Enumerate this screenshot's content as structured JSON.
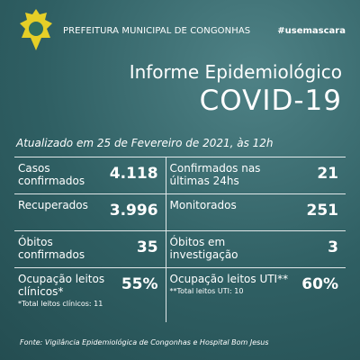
{
  "header": {
    "organization": "PREFEITURA MUNICIPAL DE CONGONHAS",
    "hashtag": "#usemascara",
    "title": "Informe Epidemiológico",
    "subtitle": "COVID-19",
    "updated": "Atualizado em 25 de Fevereiro de 2021, às 12h"
  },
  "stats": [
    [
      {
        "label": "Casos confirmados",
        "value": "4.118"
      },
      {
        "label": "Confirmados nas últimas 24hs",
        "value": "21"
      }
    ],
    [
      {
        "label": "Recuperados",
        "value": "3.996"
      },
      {
        "label": "Monitorados",
        "value": "251"
      }
    ],
    [
      {
        "label": "Óbitos confirmados",
        "value": "35"
      },
      {
        "label": "Óbitos em investigação",
        "value": "3"
      }
    ],
    [
      {
        "label": "Ocupação leitos clínicos*",
        "value": "55%",
        "note": "*Total leitos clínicos: 11"
      },
      {
        "label": "Ocupação leitos UTI**",
        "value": "60%",
        "note": "**Total leitos UTI: 10"
      }
    ]
  ],
  "source": "Fonte: Vigilância Epidemiológica de Congonhas e Hospital Bom Jesus"
}
